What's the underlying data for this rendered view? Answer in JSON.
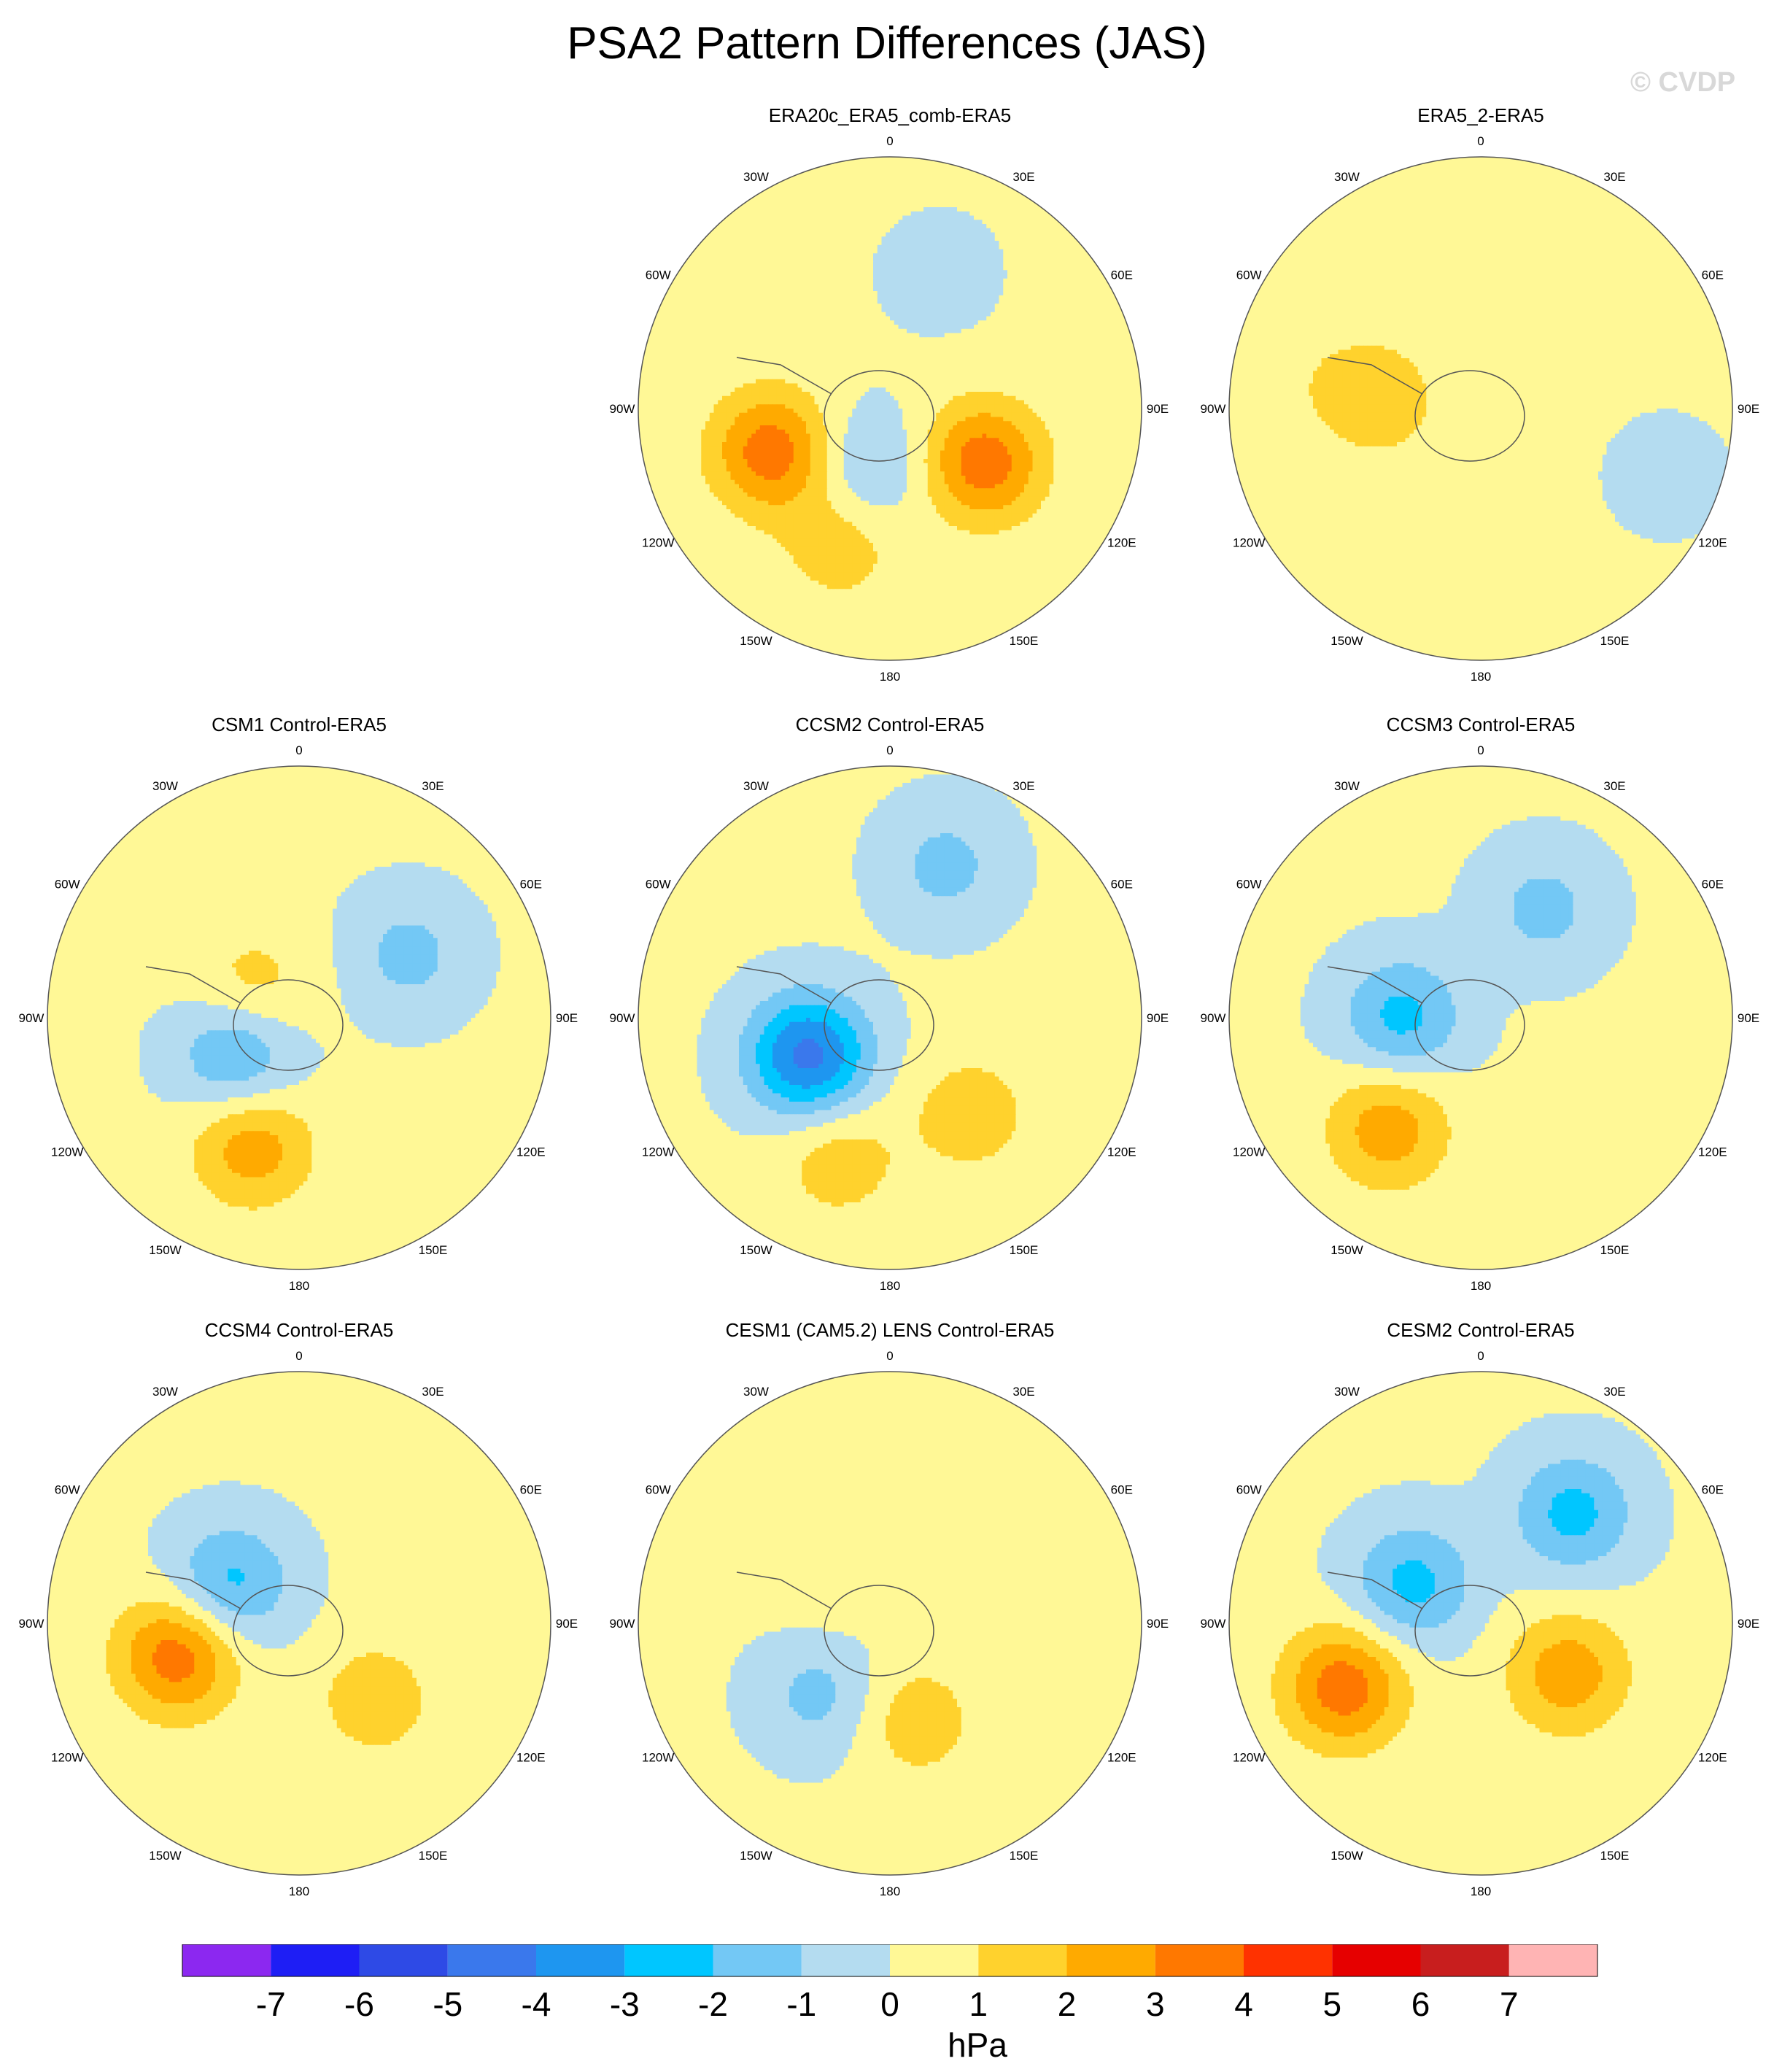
{
  "figure": {
    "title": "PSA2 Pattern Differences (JAS)",
    "watermark": "© CVDP"
  },
  "lon_labels": [
    "0",
    "30E",
    "60E",
    "90E",
    "120E",
    "150E",
    "180",
    "150W",
    "120W",
    "90W",
    "60W",
    "30W"
  ],
  "colorbar": {
    "units": "hPa",
    "levels": [
      -7,
      -6,
      -5,
      -4,
      -3,
      -2,
      -1,
      0,
      1,
      2,
      3,
      4,
      5,
      6,
      7
    ],
    "colors": [
      "#8c28f0",
      "#1e1ef5",
      "#2e4ae6",
      "#3a78ec",
      "#1e96f0",
      "#00c6ff",
      "#73c8f5",
      "#b4dcf0",
      "#fff896",
      "#ffd22d",
      "#ffaa00",
      "#ff7800",
      "#ff3200",
      "#e60000",
      "#c81e1e",
      "#ffb4b4"
    ]
  },
  "chart_data": {
    "type": "contour-map",
    "projection": "polar stereographic, South Pole",
    "units": "hPa",
    "panels": [
      {
        "title": "ERA20c_ERA5_comb-ERA5",
        "range_hPa": [
          -2,
          4
        ],
        "features": [
          {
            "lon": 200,
            "lat": -50,
            "value": 1.5
          },
          {
            "lon": 250,
            "lat": -55,
            "value": 3.5
          },
          {
            "lon": 120,
            "lat": -60,
            "value": 3.5
          },
          {
            "lon": 200,
            "lat": -72,
            "value": -1.5
          },
          {
            "lon": 20,
            "lat": -50,
            "value": -0.5
          }
        ]
      },
      {
        "title": "ERA5_2-ERA5",
        "range_hPa": [
          -1,
          2
        ],
        "features": [
          {
            "lon": 110,
            "lat": -35,
            "value": -0.5
          },
          {
            "lon": 280,
            "lat": -45,
            "value": 0.5
          },
          {
            "lon": 275,
            "lat": -62,
            "value": 1.5
          }
        ]
      },
      {
        "title": "CSM1 Control-ERA5",
        "range_hPa": [
          -3,
          3
        ],
        "features": [
          {
            "lon": 60,
            "lat": -55,
            "value": -1.5
          },
          {
            "lon": 200,
            "lat": -52,
            "value": 2.5
          },
          {
            "lon": 240,
            "lat": -70,
            "value": -2.5
          },
          {
            "lon": 300,
            "lat": -75,
            "value": 1.5
          }
        ]
      },
      {
        "title": "CCSM2 Control-ERA5",
        "range_hPa": [
          -5,
          2
        ],
        "features": [
          {
            "lon": 245,
            "lat": -65,
            "value": -4.5
          },
          {
            "lon": 200,
            "lat": -48,
            "value": 1.5
          },
          {
            "lon": 140,
            "lat": -55,
            "value": 1.5
          },
          {
            "lon": 20,
            "lat": -45,
            "value": -1.5
          }
        ]
      },
      {
        "title": "CCSM3 Control-ERA5",
        "range_hPa": [
          -3,
          3
        ],
        "features": [
          {
            "lon": 220,
            "lat": -50,
            "value": 2.5
          },
          {
            "lon": 270,
            "lat": -68,
            "value": -2.5
          },
          {
            "lon": 30,
            "lat": -55,
            "value": -1.5
          }
        ]
      },
      {
        "title": "CCSM4 Control-ERA5",
        "range_hPa": [
          -3,
          4
        ],
        "features": [
          {
            "lon": 255,
            "lat": -55,
            "value": 3.5
          },
          {
            "lon": 300,
            "lat": -68,
            "value": -2.5
          },
          {
            "lon": 135,
            "lat": -60,
            "value": 1.5
          }
        ]
      },
      {
        "title": "CESM1 (CAM5.2) LENS Control-ERA5",
        "range_hPa": [
          -2,
          2
        ],
        "features": [
          {
            "lon": 225,
            "lat": -62,
            "value": -1.5
          },
          {
            "lon": 165,
            "lat": -62,
            "value": 1.5
          },
          {
            "lon": 300,
            "lat": -70,
            "value": 0.5
          }
        ]
      },
      {
        "title": "CESM2 Control-ERA5",
        "range_hPa": [
          -3,
          4
        ],
        "features": [
          {
            "lon": 245,
            "lat": -48,
            "value": 3.5
          },
          {
            "lon": 300,
            "lat": -68,
            "value": -2.5
          },
          {
            "lon": 40,
            "lat": -50,
            "value": -2.5
          },
          {
            "lon": 120,
            "lat": -62,
            "value": 2.5
          }
        ]
      }
    ]
  }
}
